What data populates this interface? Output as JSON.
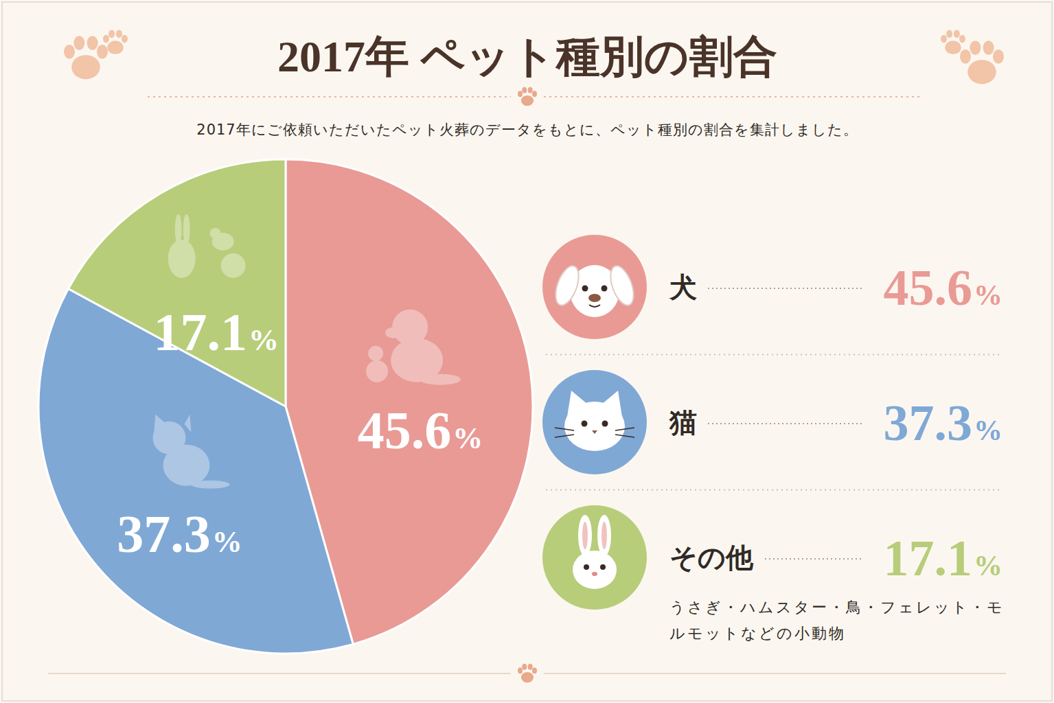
{
  "chart_data": {
    "type": "pie",
    "title": "2017年 ペット種別の割合",
    "subtitle": "2017年にご依頼いただいたペット火葬のデータをもとに、ペット種別の割合を集計しました。",
    "categories": [
      "犬",
      "猫",
      "その他"
    ],
    "values": [
      45.6,
      37.3,
      17.1
    ],
    "value_labels": [
      "45.6%",
      "37.3%",
      "17.1%"
    ],
    "colors": [
      "#e99a95",
      "#7fa8d5",
      "#b7cd7a"
    ],
    "data_labels": true,
    "annotations": [
      "うさぎ・ハムスター・鳥・フェレット・モルモットなどの小動物"
    ]
  }
}
